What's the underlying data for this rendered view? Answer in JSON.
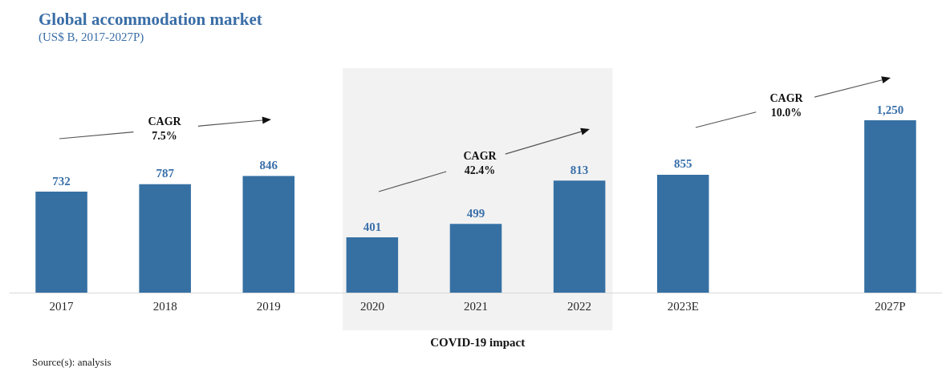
{
  "chart_data": {
    "type": "bar",
    "title": "Global accommodation market",
    "subtitle": "(US$ B, 2017-2027P)",
    "categories": [
      "2017",
      "2018",
      "2019",
      "2020",
      "2021",
      "2022",
      "2023E",
      null,
      "2027P"
    ],
    "values": [
      732,
      787,
      846,
      401,
      499,
      813,
      855,
      null,
      1250
    ],
    "color": "#3670a3",
    "value_labels": [
      "732",
      "787",
      "846",
      "401",
      "499",
      "813",
      "855",
      null,
      "1,250"
    ],
    "bands": [
      {
        "axis": "x",
        "from": "2020",
        "to": "2022",
        "label": "COVID-19 impact",
        "color": "#f2f2f2"
      }
    ],
    "annotations": [
      "CAGR\n7.5%",
      "CAGR\n42.4%",
      "CAGR\n10.0%",
      "Source(s): analysis"
    ]
  }
}
